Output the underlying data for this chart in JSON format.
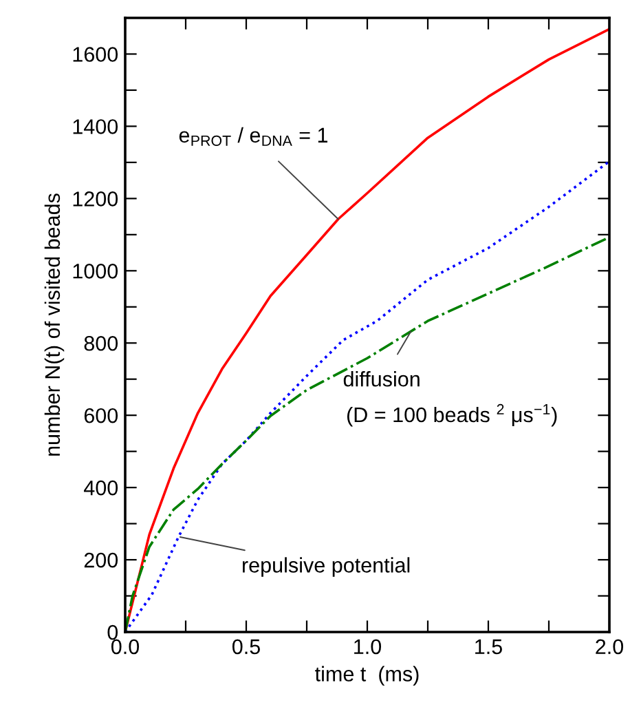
{
  "chart_data": {
    "type": "line",
    "xlabel": "time t  (ms)",
    "ylabel": "number N(t) of visited beads",
    "xlim": [
      0,
      2.0
    ],
    "ylim": [
      0,
      1700
    ],
    "xticks": [
      {
        "value": 0,
        "label": "0.0"
      },
      {
        "value": 0.25,
        "label": null
      },
      {
        "value": 0.5,
        "label": "0.5"
      },
      {
        "value": 0.75,
        "label": null
      },
      {
        "value": 1.0,
        "label": "1.0"
      },
      {
        "value": 1.25,
        "label": null
      },
      {
        "value": 1.5,
        "label": "1.5"
      },
      {
        "value": 1.75,
        "label": null
      },
      {
        "value": 2.0,
        "label": "2.0"
      }
    ],
    "yticks": [
      0,
      {
        "value": 100,
        "label": null
      },
      200,
      {
        "value": 300,
        "label": null
      },
      400,
      {
        "value": 500,
        "label": null
      },
      600,
      {
        "value": 700,
        "label": null
      },
      800,
      {
        "value": 900,
        "label": null
      },
      1000,
      {
        "value": 1100,
        "label": null
      },
      1200,
      {
        "value": 1300,
        "label": null
      },
      1400,
      {
        "value": 1500,
        "label": null
      },
      1600
    ],
    "grid": false,
    "legend": false,
    "series": [
      {
        "color": "#ff0000",
        "line_style": "solid",
        "x": [
          0,
          0.1,
          0.2,
          0.3,
          0.4,
          0.5,
          0.6,
          0.75,
          0.88,
          1.0,
          1.25,
          1.5,
          1.75,
          2.0
        ],
        "values": [
          0,
          270,
          453,
          606,
          728,
          827,
          930,
          1044,
          1143,
          1215,
          1368,
          1482,
          1585,
          1669
        ]
      },
      {
        "color": "#0000ff",
        "line_style": "dotted",
        "x": [
          0,
          0.11,
          0.22,
          0.3,
          0.4,
          0.5,
          0.6,
          0.75,
          0.9,
          1.04,
          1.25,
          1.5,
          1.75,
          2.0
        ],
        "values": [
          0,
          103,
          263,
          366,
          465,
          530,
          606,
          709,
          808,
          861,
          975,
          1063,
          1177,
          1303
        ]
      },
      {
        "color": "#008000",
        "line_style": "dashdot",
        "x": [
          0,
          0.03,
          0.1,
          0.2,
          0.3,
          0.4,
          0.5,
          0.6,
          0.75,
          1.0,
          1.25,
          1.5,
          1.75,
          2.0
        ],
        "values": [
          0,
          99,
          236,
          339,
          396,
          465,
          530,
          598,
          670,
          758,
          861,
          937,
          1013,
          1093
        ]
      }
    ],
    "annotations": [
      {
        "text": "e$_{PROT}$ / e$_{DNA}$ = 1",
        "x": 0.88,
        "y": 1143
      },
      {
        "text": "diffusion",
        "x": 1.18,
        "y": 832
      },
      "(D = 100 beads $^{2}$ μs$^{−1}$)",
      {
        "text": "repulsive potential",
        "x": 0.227,
        "y": 263
      }
    ]
  }
}
